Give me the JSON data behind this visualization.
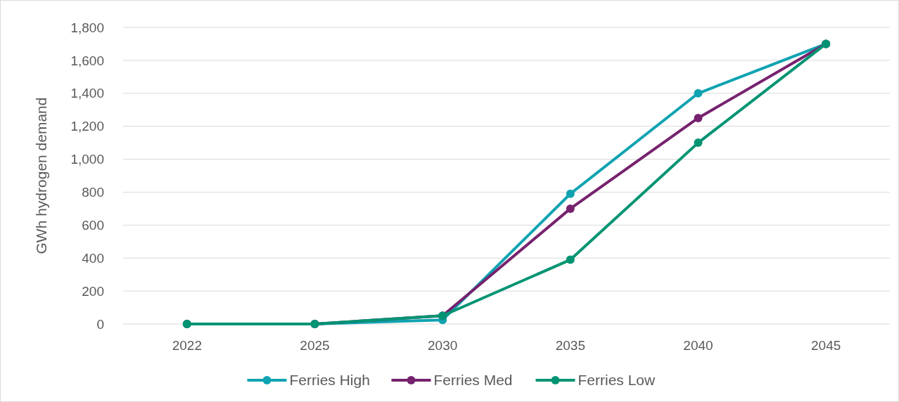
{
  "chart_data": {
    "type": "line",
    "ylabel": "GWh hydrogen demand",
    "categories": [
      "2022",
      "2025",
      "2030",
      "2035",
      "2040",
      "2045"
    ],
    "series": [
      {
        "name": "Ferries High",
        "color": "#0fa3b1",
        "values": [
          0,
          0,
          25,
          790,
          1400,
          1700
        ]
      },
      {
        "name": "Ferries Med",
        "color": "#76226e",
        "values": [
          0,
          0,
          50,
          700,
          1250,
          1700
        ]
      },
      {
        "name": "Ferries Low",
        "color": "#009473",
        "values": [
          0,
          0,
          50,
          390,
          1100,
          1700
        ]
      }
    ],
    "ylim": [
      0,
      1800
    ],
    "yticks": [
      {
        "value": 0,
        "label": "0"
      },
      {
        "value": 200,
        "label": "200"
      },
      {
        "value": 400,
        "label": "400"
      },
      {
        "value": 600,
        "label": "600"
      },
      {
        "value": 800,
        "label": "800"
      },
      {
        "value": 1000,
        "label": "1,000"
      },
      {
        "value": 1200,
        "label": "1,200"
      },
      {
        "value": 1400,
        "label": "1,400"
      },
      {
        "value": 1600,
        "label": "1,600"
      },
      {
        "value": 1800,
        "label": "1,800"
      }
    ],
    "grid": "y",
    "legend": "bottom",
    "marker": "circle",
    "line_style": "solid"
  }
}
